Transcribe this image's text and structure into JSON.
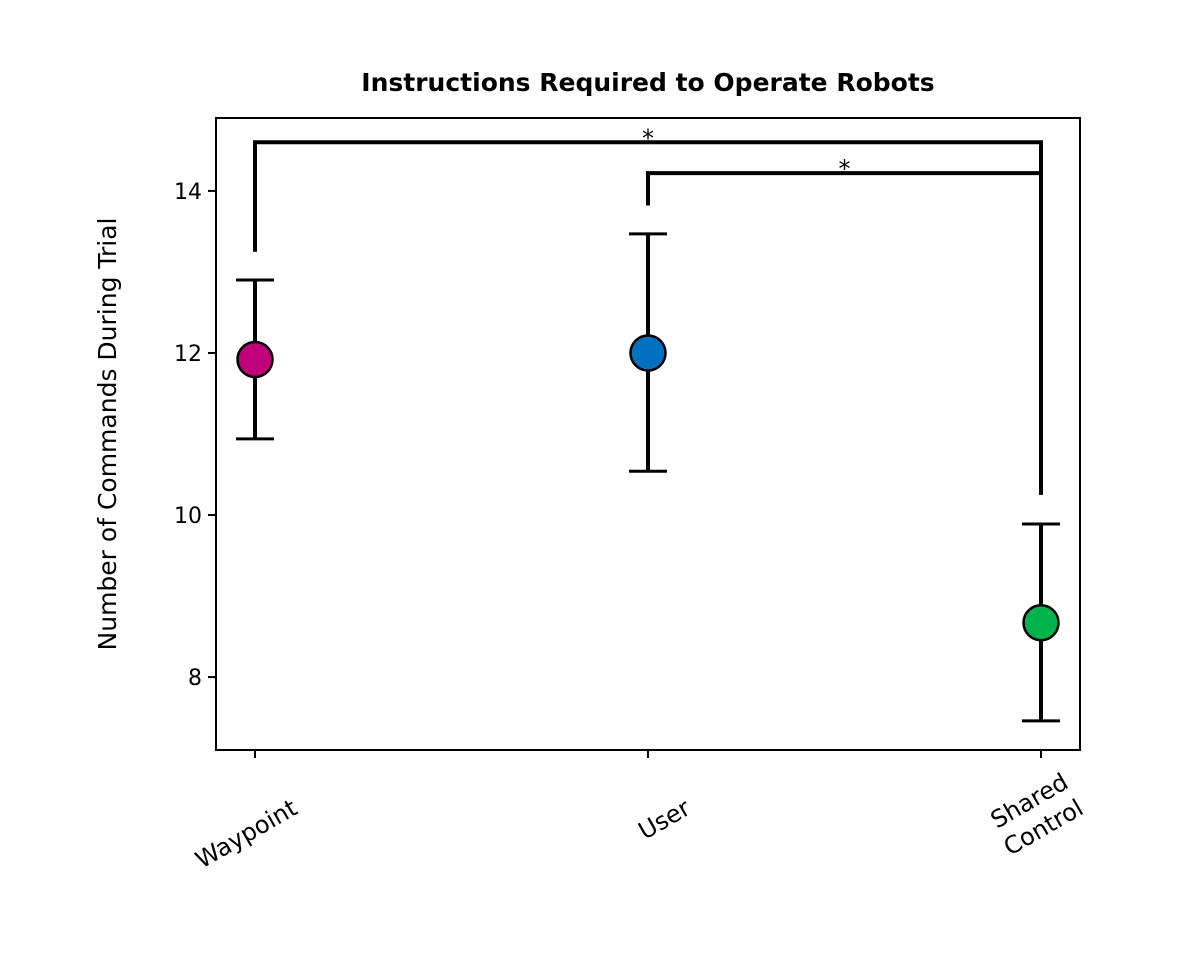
{
  "chart_data": {
    "type": "scatter",
    "title": "Instructions Required to Operate Robots",
    "xlabel": "",
    "ylabel": "Number of Commands During Trial",
    "categories": [
      "Waypoint",
      "User",
      "Shared Control"
    ],
    "category_lines": [
      [
        "Waypoint"
      ],
      [
        "User"
      ],
      [
        "Shared",
        "Control"
      ]
    ],
    "values": [
      11.92,
      12.0,
      8.67
    ],
    "error_low": [
      10.94,
      10.54,
      7.46
    ],
    "error_high": [
      12.9,
      13.47,
      9.89
    ],
    "colors": [
      "#c0007a",
      "#0071c0",
      "#00b44b"
    ],
    "ylim": [
      7.1,
      14.9
    ],
    "yticks": [
      8,
      10,
      12,
      14
    ],
    "grid": false,
    "legend": "none",
    "significance": [
      {
        "from": 0,
        "to": 2,
        "label": "*",
        "y": 14.6,
        "left_bottom": 13.25,
        "right_bottom": 10.25
      },
      {
        "from": 1,
        "to": 2,
        "label": "*",
        "y": 14.22,
        "left_bottom": 13.82,
        "right_bottom": 10.25
      }
    ]
  }
}
